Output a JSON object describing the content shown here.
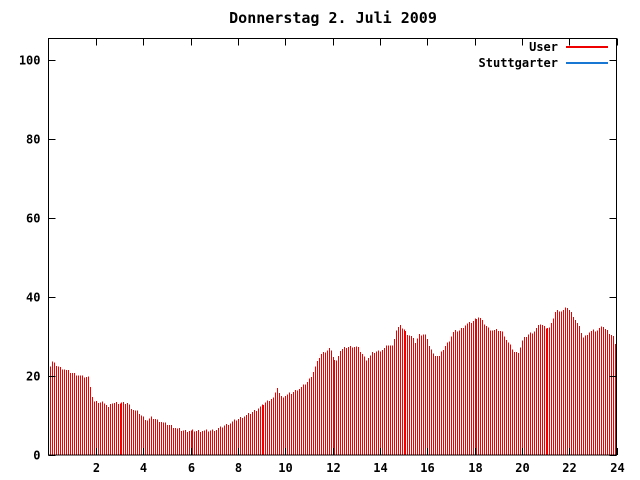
{
  "title": "Donnerstag 2. Juli 2009",
  "legend": {
    "position": "top-right",
    "items": [
      {
        "label": "User",
        "color": "#ee0000"
      },
      {
        "label": "Stuttgarter",
        "color": "#1777d2"
      }
    ]
  },
  "axes": {
    "x_ticks": [
      2,
      4,
      6,
      8,
      10,
      12,
      14,
      16,
      18,
      20,
      22,
      24
    ],
    "y_ticks": [
      0,
      20,
      40,
      60,
      80,
      100
    ],
    "x_range": [
      0,
      24
    ],
    "y_range": [
      0,
      105.4
    ],
    "grid": false
  },
  "chart_data": {
    "type": "bar",
    "style": "impulses",
    "title": "Donnerstag 2. Juli 2009",
    "xlabel": "",
    "ylabel": "",
    "xlim": [
      0,
      24
    ],
    "ylim": [
      0,
      105.4
    ],
    "x_tick_labels": [
      2,
      4,
      6,
      8,
      10,
      12,
      14,
      16,
      18,
      20,
      22,
      24
    ],
    "y_tick_labels": [
      0,
      20,
      40,
      60,
      80,
      100
    ],
    "legend_position": "top-right",
    "sample_interval_minutes": 5,
    "annotations": [
      "Stuttgarter series has no visible bars (values at or near zero)"
    ],
    "series": [
      {
        "name": "User",
        "color": "#ee0000",
        "points": [
          [
            0.08,
            22.5
          ],
          [
            0.15,
            23.7
          ],
          [
            0.3,
            22.9
          ],
          [
            0.45,
            22.2
          ],
          [
            0.6,
            21.9
          ],
          [
            0.8,
            21.3
          ],
          [
            1.0,
            20.7
          ],
          [
            1.2,
            20.4
          ],
          [
            1.45,
            19.8
          ],
          [
            1.7,
            19.6
          ],
          [
            1.8,
            15.5
          ],
          [
            1.9,
            13.5
          ],
          [
            2.1,
            13.3
          ],
          [
            2.35,
            13.4
          ],
          [
            2.5,
            12.0
          ],
          [
            2.65,
            13.2
          ],
          [
            3.0,
            13.2
          ],
          [
            3.35,
            13.1
          ],
          [
            3.55,
            11.6
          ],
          [
            3.8,
            10.8
          ],
          [
            4.0,
            9.5
          ],
          [
            4.15,
            8.8
          ],
          [
            4.35,
            9.5
          ],
          [
            4.6,
            8.8
          ],
          [
            4.9,
            8.0
          ],
          [
            5.15,
            7.4
          ],
          [
            5.4,
            6.7
          ],
          [
            5.65,
            6.2
          ],
          [
            6.0,
            6.1
          ],
          [
            6.4,
            6.1
          ],
          [
            6.85,
            6.2
          ],
          [
            7.1,
            6.5
          ],
          [
            7.4,
            7.4
          ],
          [
            7.7,
            8.2
          ],
          [
            7.95,
            9.0
          ],
          [
            8.15,
            9.6
          ],
          [
            8.45,
            10.4
          ],
          [
            8.75,
            11.5
          ],
          [
            9.0,
            12.5
          ],
          [
            9.2,
            13.4
          ],
          [
            9.4,
            14.3
          ],
          [
            9.55,
            14.6
          ],
          [
            9.65,
            17.5
          ],
          [
            9.8,
            14.7
          ],
          [
            10.0,
            15.0
          ],
          [
            10.25,
            15.7
          ],
          [
            10.5,
            16.6
          ],
          [
            10.7,
            17.2
          ],
          [
            10.9,
            18.4
          ],
          [
            11.05,
            19.6
          ],
          [
            11.2,
            21.5
          ],
          [
            11.45,
            25.3
          ],
          [
            11.7,
            26.4
          ],
          [
            11.85,
            27.0
          ],
          [
            12.0,
            25.0
          ],
          [
            12.15,
            23.4
          ],
          [
            12.3,
            26.3
          ],
          [
            12.55,
            27.2
          ],
          [
            12.8,
            27.5
          ],
          [
            13.05,
            27.4
          ],
          [
            13.2,
            26.0
          ],
          [
            13.4,
            24.2
          ],
          [
            13.55,
            24.9
          ],
          [
            13.7,
            26.0
          ],
          [
            13.95,
            26.3
          ],
          [
            14.15,
            26.9
          ],
          [
            14.35,
            28.0
          ],
          [
            14.5,
            27.5
          ],
          [
            14.65,
            31.5
          ],
          [
            14.8,
            32.7
          ],
          [
            15.0,
            31.8
          ],
          [
            15.15,
            30.8
          ],
          [
            15.35,
            30.0
          ],
          [
            15.5,
            28.5
          ],
          [
            15.65,
            30.4
          ],
          [
            15.9,
            30.7
          ],
          [
            16.05,
            28.3
          ],
          [
            16.25,
            25.5
          ],
          [
            16.5,
            25.0
          ],
          [
            16.7,
            27.2
          ],
          [
            16.9,
            28.8
          ],
          [
            17.1,
            31.3
          ],
          [
            17.35,
            31.6
          ],
          [
            17.6,
            33.0
          ],
          [
            17.85,
            33.6
          ],
          [
            18.05,
            34.6
          ],
          [
            18.2,
            35.0
          ],
          [
            18.35,
            33.8
          ],
          [
            18.55,
            32.2
          ],
          [
            18.8,
            31.5
          ],
          [
            19.05,
            31.6
          ],
          [
            19.2,
            30.9
          ],
          [
            19.35,
            29.0
          ],
          [
            19.55,
            27.2
          ],
          [
            19.7,
            25.8
          ],
          [
            19.85,
            26.1
          ],
          [
            20.0,
            28.9
          ],
          [
            20.1,
            29.7
          ],
          [
            20.3,
            30.7
          ],
          [
            20.5,
            31.4
          ],
          [
            20.75,
            33.3
          ],
          [
            20.95,
            32.3
          ],
          [
            21.2,
            32.2
          ],
          [
            21.4,
            36.1
          ],
          [
            21.55,
            36.7
          ],
          [
            21.7,
            36.3
          ],
          [
            21.9,
            37.5
          ],
          [
            22.05,
            36.3
          ],
          [
            22.2,
            34.9
          ],
          [
            22.4,
            32.6
          ],
          [
            22.6,
            29.5
          ],
          [
            22.8,
            31.0
          ],
          [
            23.0,
            31.5
          ],
          [
            23.2,
            31.5
          ],
          [
            23.35,
            33.0
          ],
          [
            23.5,
            31.8
          ],
          [
            23.7,
            30.7
          ],
          [
            23.85,
            29.9
          ],
          [
            23.97,
            27.3
          ]
        ]
      },
      {
        "name": "Stuttgarter",
        "color": "#1777d2",
        "points": []
      }
    ]
  }
}
